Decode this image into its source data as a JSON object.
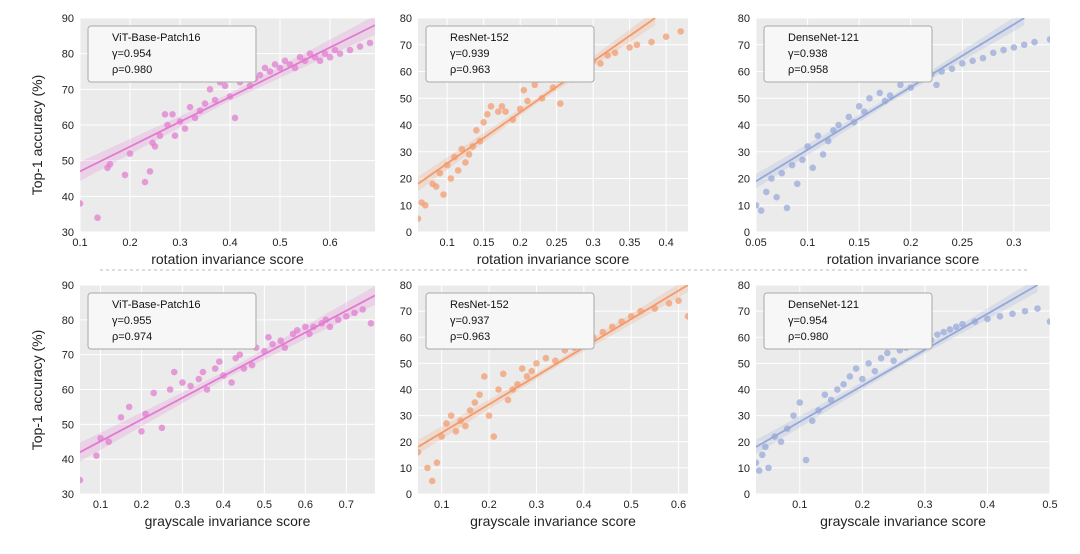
{
  "y_axis_label": "Top-1 accuracy (%)",
  "chart_data": [
    {
      "type": "scatter",
      "row": 0,
      "col": 0,
      "model": "ViT-Base-Patch16",
      "gamma": "γ=0.954",
      "rho": "ρ=0.980",
      "xlabel": "rotation invariance score",
      "ylabel": "Top-1 accuracy (%)",
      "xlim": [
        0.1,
        0.69
      ],
      "ylim": [
        30,
        90
      ],
      "xticks": [
        0.1,
        0.2,
        0.3,
        0.4,
        0.5,
        0.6
      ],
      "yticks": [
        30,
        40,
        50,
        60,
        70,
        80,
        90
      ],
      "color": "#e27ad0",
      "fit": [
        [
          0.1,
          47
        ],
        [
          0.69,
          88
        ]
      ],
      "x": [
        0.1,
        0.135,
        0.155,
        0.16,
        0.19,
        0.2,
        0.23,
        0.24,
        0.245,
        0.25,
        0.26,
        0.27,
        0.275,
        0.285,
        0.29,
        0.3,
        0.31,
        0.32,
        0.33,
        0.34,
        0.35,
        0.36,
        0.37,
        0.38,
        0.39,
        0.4,
        0.41,
        0.42,
        0.43,
        0.44,
        0.45,
        0.46,
        0.47,
        0.48,
        0.49,
        0.5,
        0.51,
        0.52,
        0.53,
        0.54,
        0.55,
        0.56,
        0.57,
        0.58,
        0.59,
        0.6,
        0.61,
        0.62,
        0.64,
        0.66,
        0.68
      ],
      "y": [
        38,
        34,
        48,
        49,
        46,
        52,
        44,
        47,
        55,
        54,
        57,
        63,
        60,
        63,
        57,
        61,
        59,
        65,
        62,
        64,
        66,
        70,
        67,
        72,
        71,
        68,
        62,
        72,
        74,
        71,
        73,
        74,
        76,
        75,
        77,
        76,
        78,
        77,
        76,
        79,
        78,
        80,
        79,
        78,
        80,
        79,
        81,
        80,
        81,
        82,
        83
      ]
    },
    {
      "type": "scatter",
      "row": 0,
      "col": 1,
      "model": "ResNet-152",
      "gamma": "γ=0.939",
      "rho": "ρ=0.963",
      "xlabel": "rotation invariance score",
      "ylabel": "",
      "xlim": [
        0.06,
        0.43
      ],
      "ylim": [
        0,
        80
      ],
      "xticks": [
        0.1,
        0.15,
        0.2,
        0.25,
        0.3,
        0.35,
        0.4
      ],
      "yticks": [
        0,
        10,
        20,
        30,
        40,
        50,
        60,
        70,
        80
      ],
      "color": "#f39a6c",
      "fit": [
        [
          0.06,
          18
        ],
        [
          0.385,
          80
        ]
      ],
      "x": [
        0.06,
        0.065,
        0.07,
        0.08,
        0.085,
        0.09,
        0.095,
        0.1,
        0.105,
        0.11,
        0.115,
        0.12,
        0.125,
        0.13,
        0.135,
        0.14,
        0.145,
        0.15,
        0.155,
        0.16,
        0.17,
        0.175,
        0.18,
        0.19,
        0.2,
        0.205,
        0.21,
        0.22,
        0.225,
        0.23,
        0.24,
        0.245,
        0.25,
        0.255,
        0.26,
        0.27,
        0.28,
        0.29,
        0.3,
        0.31,
        0.32,
        0.33,
        0.35,
        0.36,
        0.38,
        0.4,
        0.42
      ],
      "y": [
        5,
        11,
        10,
        18,
        17,
        22,
        14,
        25,
        20,
        28,
        23,
        31,
        26,
        29,
        32,
        38,
        34,
        41,
        44,
        47,
        45,
        47,
        45,
        42,
        46,
        53,
        49,
        55,
        57,
        50,
        58,
        54,
        60,
        48,
        60,
        57,
        60,
        62,
        64,
        63,
        66,
        67,
        69,
        70,
        71,
        73,
        75
      ]
    },
    {
      "type": "scatter",
      "row": 0,
      "col": 2,
      "model": "DenseNet-121",
      "gamma": "γ=0.938",
      "rho": "ρ=0.958",
      "xlabel": "rotation invariance score",
      "ylabel": "",
      "xlim": [
        0.05,
        0.335
      ],
      "ylim": [
        0,
        80
      ],
      "xticks": [
        0.05,
        0.1,
        0.15,
        0.2,
        0.25,
        0.3
      ],
      "yticks": [
        0,
        10,
        20,
        30,
        40,
        50,
        60,
        70,
        80
      ],
      "color": "#95a8d8",
      "fit": [
        [
          0.05,
          19
        ],
        [
          0.31,
          80
        ]
      ],
      "x": [
        0.05,
        0.055,
        0.06,
        0.065,
        0.07,
        0.075,
        0.08,
        0.085,
        0.09,
        0.095,
        0.1,
        0.105,
        0.11,
        0.115,
        0.12,
        0.125,
        0.13,
        0.14,
        0.145,
        0.15,
        0.155,
        0.16,
        0.17,
        0.175,
        0.18,
        0.19,
        0.2,
        0.21,
        0.22,
        0.225,
        0.23,
        0.24,
        0.25,
        0.26,
        0.27,
        0.28,
        0.29,
        0.3,
        0.31,
        0.32,
        0.335
      ],
      "y": [
        10,
        8,
        15,
        20,
        13,
        22,
        9,
        25,
        18,
        27,
        32,
        24,
        36,
        29,
        34,
        38,
        40,
        43,
        41,
        47,
        45,
        50,
        52,
        49,
        51,
        55,
        54,
        57,
        59,
        55,
        60,
        61,
        63,
        64,
        65,
        67,
        68,
        69,
        70,
        71,
        72
      ]
    },
    {
      "type": "scatter",
      "row": 1,
      "col": 0,
      "model": "ViT-Base-Patch16",
      "gamma": "γ=0.955",
      "rho": "ρ=0.974",
      "xlabel": "grayscale invariance score",
      "ylabel": "Top-1 accuracy (%)",
      "xlim": [
        0.05,
        0.77
      ],
      "ylim": [
        30,
        90
      ],
      "xticks": [
        0.1,
        0.2,
        0.3,
        0.4,
        0.5,
        0.6,
        0.7
      ],
      "yticks": [
        30,
        40,
        50,
        60,
        70,
        80,
        90
      ],
      "color": "#e27ad0",
      "fit": [
        [
          0.05,
          42
        ],
        [
          0.77,
          87
        ]
      ],
      "x": [
        0.05,
        0.09,
        0.1,
        0.12,
        0.15,
        0.17,
        0.2,
        0.21,
        0.23,
        0.25,
        0.27,
        0.28,
        0.3,
        0.32,
        0.34,
        0.35,
        0.36,
        0.38,
        0.39,
        0.4,
        0.42,
        0.43,
        0.44,
        0.45,
        0.47,
        0.48,
        0.5,
        0.51,
        0.52,
        0.54,
        0.55,
        0.57,
        0.58,
        0.6,
        0.61,
        0.62,
        0.64,
        0.65,
        0.66,
        0.68,
        0.7,
        0.72,
        0.74,
        0.76
      ],
      "y": [
        34,
        41,
        46,
        45,
        52,
        55,
        48,
        53,
        59,
        49,
        60,
        65,
        62,
        61,
        63,
        65,
        60,
        66,
        68,
        64,
        62,
        69,
        70,
        66,
        67,
        72,
        71,
        75,
        73,
        74,
        72,
        76,
        77,
        78,
        76,
        78,
        79,
        80,
        78,
        80,
        81,
        82,
        83,
        79
      ]
    },
    {
      "type": "scatter",
      "row": 1,
      "col": 1,
      "model": "ResNet-152",
      "gamma": "γ=0.937",
      "rho": "ρ=0.963",
      "xlabel": "grayscale invariance score",
      "ylabel": "",
      "xlim": [
        0.05,
        0.62
      ],
      "ylim": [
        0,
        80
      ],
      "xticks": [
        0.1,
        0.2,
        0.3,
        0.4,
        0.5,
        0.6
      ],
      "yticks": [
        0,
        10,
        20,
        30,
        40,
        50,
        60,
        70,
        80
      ],
      "color": "#f39a6c",
      "fit": [
        [
          0.05,
          18
        ],
        [
          0.62,
          80
        ]
      ],
      "x": [
        0.05,
        0.07,
        0.08,
        0.09,
        0.1,
        0.11,
        0.12,
        0.13,
        0.14,
        0.15,
        0.16,
        0.17,
        0.18,
        0.19,
        0.2,
        0.21,
        0.22,
        0.23,
        0.24,
        0.25,
        0.26,
        0.27,
        0.28,
        0.29,
        0.3,
        0.32,
        0.34,
        0.36,
        0.38,
        0.4,
        0.42,
        0.44,
        0.46,
        0.48,
        0.5,
        0.52,
        0.55,
        0.58,
        0.6,
        0.62
      ],
      "y": [
        16,
        10,
        5,
        12,
        22,
        27,
        30,
        24,
        28,
        26,
        32,
        35,
        38,
        45,
        30,
        22,
        40,
        46,
        36,
        40,
        42,
        48,
        45,
        47,
        50,
        52,
        51,
        55,
        56,
        58,
        60,
        62,
        64,
        66,
        68,
        70,
        71,
        73,
        74,
        68
      ]
    },
    {
      "type": "scatter",
      "row": 1,
      "col": 2,
      "model": "DenseNet-121",
      "gamma": "γ=0.954",
      "rho": "ρ=0.980",
      "xlabel": "grayscale invariance score",
      "ylabel": "",
      "xlim": [
        0.03,
        0.5
      ],
      "ylim": [
        0,
        80
      ],
      "xticks": [
        0.1,
        0.2,
        0.3,
        0.4,
        0.5
      ],
      "yticks": [
        0,
        10,
        20,
        30,
        40,
        50,
        60,
        70,
        80
      ],
      "color": "#95a8d8",
      "fit": [
        [
          0.03,
          18
        ],
        [
          0.48,
          80
        ]
      ],
      "x": [
        0.03,
        0.035,
        0.04,
        0.045,
        0.05,
        0.06,
        0.07,
        0.08,
        0.09,
        0.1,
        0.11,
        0.12,
        0.13,
        0.14,
        0.15,
        0.16,
        0.17,
        0.18,
        0.19,
        0.2,
        0.21,
        0.22,
        0.23,
        0.24,
        0.25,
        0.26,
        0.27,
        0.28,
        0.29,
        0.3,
        0.31,
        0.32,
        0.33,
        0.34,
        0.35,
        0.36,
        0.38,
        0.4,
        0.42,
        0.44,
        0.46,
        0.48,
        0.5
      ],
      "y": [
        12,
        9,
        15,
        18,
        10,
        22,
        20,
        25,
        30,
        35,
        13,
        28,
        32,
        38,
        36,
        40,
        42,
        45,
        48,
        44,
        50,
        47,
        52,
        54,
        51,
        55,
        56,
        58,
        57,
        60,
        59,
        61,
        62,
        63,
        64,
        65,
        66,
        67,
        68,
        69,
        70,
        71,
        66
      ]
    }
  ]
}
